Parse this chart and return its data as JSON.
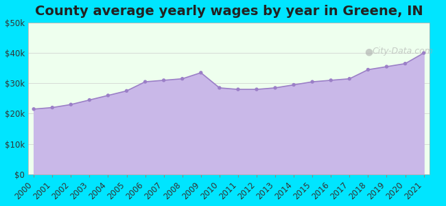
{
  "title": "County average yearly wages by year in Greene, IN",
  "years": [
    2000,
    2001,
    2002,
    2003,
    2004,
    2005,
    2006,
    2007,
    2008,
    2009,
    2010,
    2011,
    2012,
    2013,
    2014,
    2015,
    2016,
    2017,
    2018,
    2019,
    2020,
    2021
  ],
  "wages": [
    21500,
    22000,
    23000,
    24500,
    26000,
    27500,
    30500,
    31000,
    31500,
    33500,
    28500,
    28000,
    28000,
    28500,
    29500,
    30500,
    31000,
    31500,
    34500,
    35500,
    36500,
    40000
  ],
  "fill_color": "#c9b8e8",
  "line_color": "#9b7fc7",
  "dot_color": "#9b7fc7",
  "bg_outer": "#00e5ff",
  "bg_inner": "#eeffee",
  "ylim": [
    0,
    50000
  ],
  "yticks": [
    0,
    10000,
    20000,
    30000,
    40000,
    50000
  ],
  "watermark": "City-Data.com",
  "title_fontsize": 14,
  "tick_fontsize": 8.5
}
